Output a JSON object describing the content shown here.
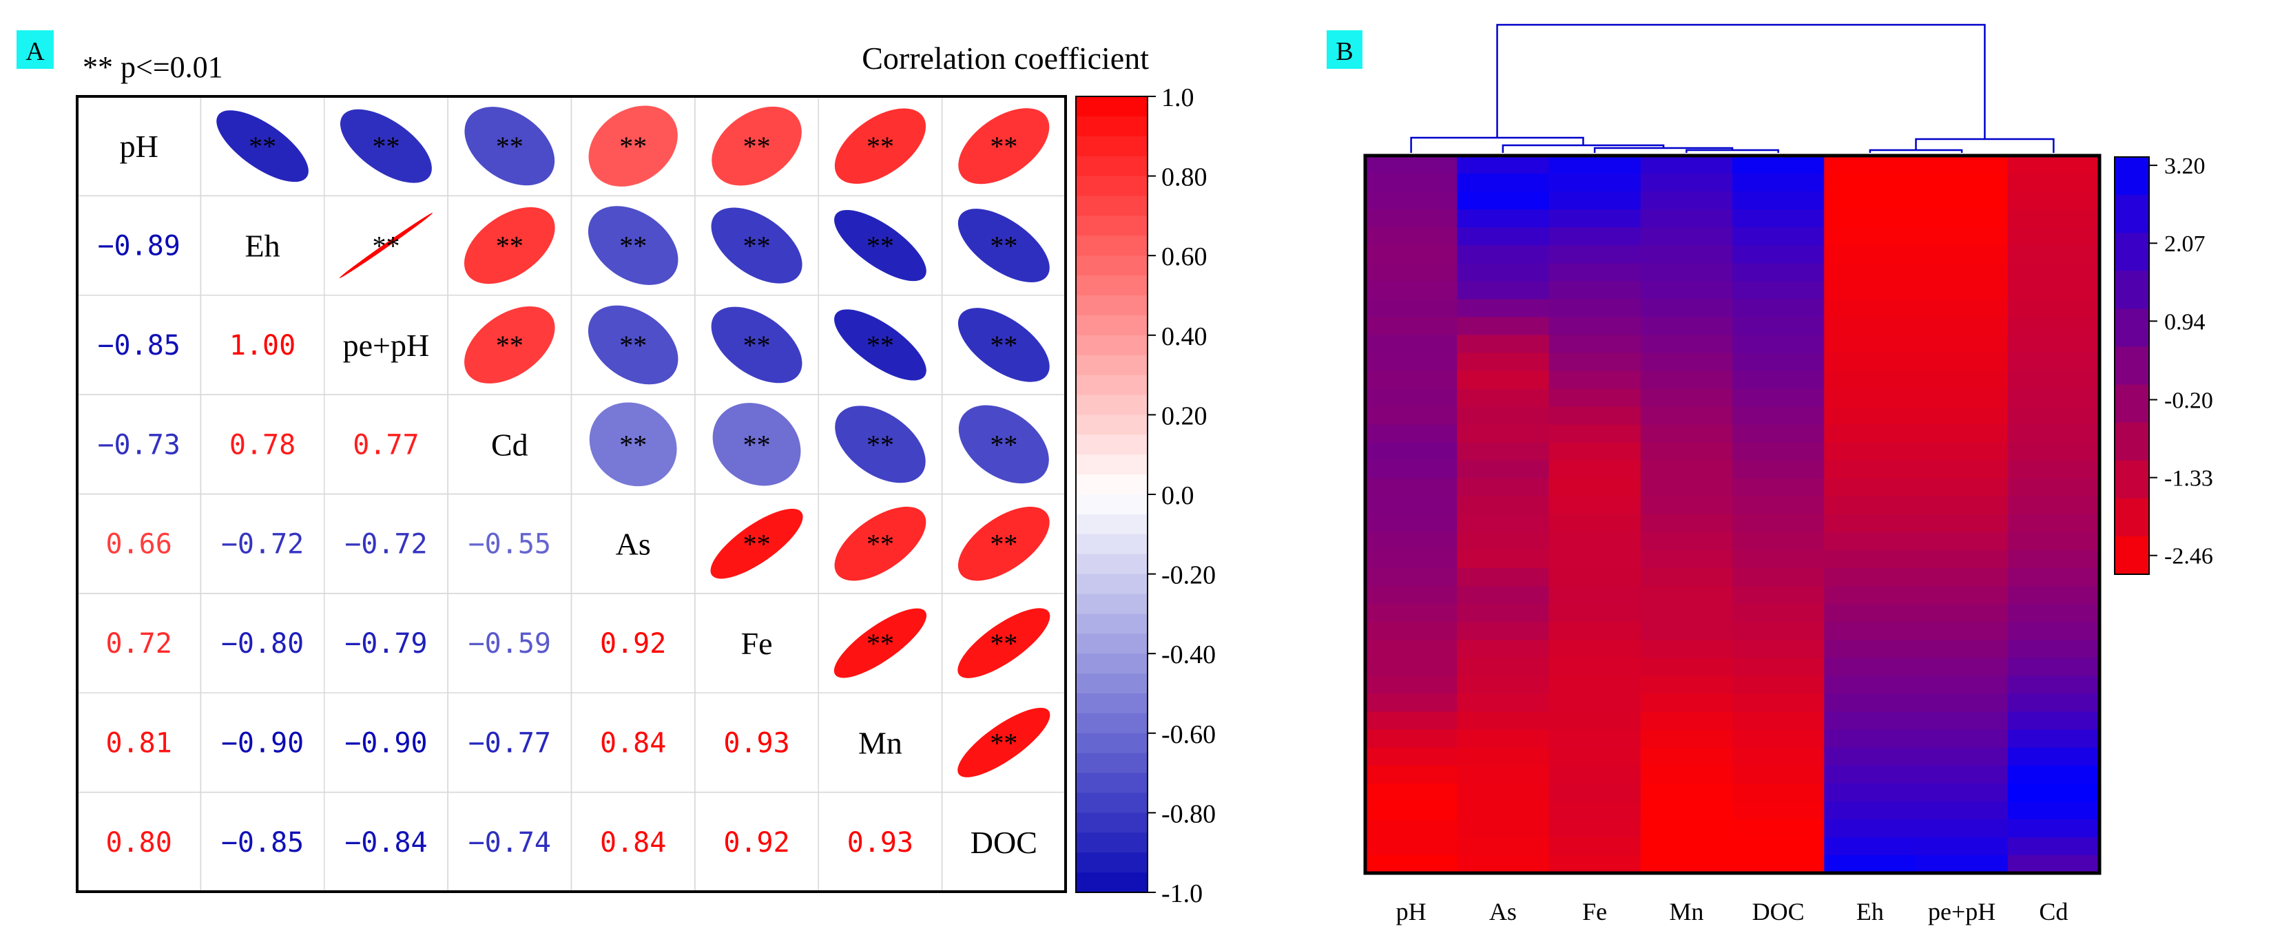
{
  "panels": {
    "a": {
      "tag": "A",
      "note": "** p<=0.01",
      "colorbar_title": "Correlation coefficient"
    },
    "b": {
      "tag": "B"
    }
  },
  "colors": {
    "tag_bg": "#19f5f2",
    "positive": "#ff0000",
    "negative": "#0a0ab4",
    "dendrogram": "#0000cc",
    "frame": "#000000"
  },
  "chart_data": [
    {
      "type": "heatmap",
      "kind": "correlation-matrix",
      "variables": [
        "pH",
        "Eh",
        "pe+pH",
        "Cd",
        "As",
        "Fe",
        "Mn",
        "DOC"
      ],
      "matrix": [
        [
          1.0,
          -0.89,
          -0.85,
          -0.73,
          0.66,
          0.72,
          0.81,
          0.8
        ],
        [
          -0.89,
          1.0,
          1.0,
          0.78,
          -0.72,
          -0.8,
          -0.9,
          -0.85
        ],
        [
          -0.85,
          1.0,
          1.0,
          0.77,
          -0.72,
          -0.79,
          -0.9,
          -0.84
        ],
        [
          -0.73,
          0.78,
          0.77,
          1.0,
          -0.55,
          -0.59,
          -0.77,
          -0.74
        ],
        [
          0.66,
          -0.72,
          -0.72,
          -0.55,
          1.0,
          0.92,
          0.84,
          0.84
        ],
        [
          0.72,
          -0.8,
          -0.79,
          -0.59,
          0.92,
          1.0,
          0.93,
          0.92
        ],
        [
          0.81,
          -0.9,
          -0.9,
          -0.77,
          0.84,
          0.93,
          1.0,
          0.93
        ],
        [
          0.8,
          -0.85,
          -0.84,
          -0.74,
          0.84,
          0.92,
          0.93,
          1.0
        ]
      ],
      "lower_labels": [
        [
          "",
          "",
          "",
          "",
          "",
          "",
          "",
          ""
        ],
        [
          "−0.89",
          "",
          "",
          "",
          "",
          "",
          "",
          ""
        ],
        [
          "−0.85",
          "1.00",
          "",
          "",
          "",
          "",
          "",
          ""
        ],
        [
          "−0.73",
          "0.78",
          "0.77",
          "",
          "",
          "",
          "",
          ""
        ],
        [
          "0.66",
          "−0.72",
          "−0.72",
          "−0.55",
          "",
          "",
          "",
          ""
        ],
        [
          "0.72",
          "−0.80",
          "−0.79",
          "−0.59",
          "0.92",
          "",
          "",
          ""
        ],
        [
          "0.81",
          "−0.90",
          "−0.90",
          "−0.77",
          "0.84",
          "0.93",
          "",
          ""
        ],
        [
          "0.80",
          "−0.85",
          "−0.84",
          "−0.74",
          "0.84",
          "0.92",
          "0.93",
          ""
        ]
      ],
      "upper_marker": "**",
      "colorbar": {
        "title": "Correlation coefficient",
        "range": [
          -1.0,
          1.0
        ],
        "ticks": [
          "1.0",
          "0.80",
          "0.60",
          "0.40",
          "0.20",
          "0.0",
          "-0.20",
          "-0.40",
          "-0.60",
          "-0.80",
          "-1.0"
        ]
      }
    },
    {
      "type": "heatmap",
      "kind": "clustered-heatmap",
      "columns": [
        "pH",
        "As",
        "Fe",
        "Mn",
        "DOC",
        "Eh",
        "pe+pH",
        "Cd"
      ],
      "rows_count": 40,
      "column_profiles": [
        [
          0.6,
          0.5,
          0.4,
          0.2,
          0.1,
          0.2,
          0.3,
          0.2,
          0.4,
          0.2,
          0.3,
          0.2,
          0.6,
          0.5,
          0.3,
          0.4,
          0.2,
          0.1,
          0.0,
          -0.2,
          -0.4,
          -0.5,
          -0.5,
          -0.8,
          -1.4,
          -1.8,
          -2.1,
          -2.4,
          -2.4,
          -2.2,
          -2.5
        ],
        [
          2.5,
          3.2,
          2.2,
          1.5,
          1.3,
          0.3,
          -0.8,
          -1.3,
          -0.9,
          -1.0,
          -0.6,
          -0.9,
          -1.0,
          -1.1,
          -0.5,
          -0.7,
          -1.2,
          -1.3,
          -1.5,
          -1.9,
          -2.0,
          -2.1,
          -2.1,
          -2.2
        ],
        [
          2.9,
          2.6,
          1.6,
          1.0,
          0.6,
          0.2,
          -0.3,
          -0.9,
          -1.4,
          -1.5,
          -1.3,
          -1.3,
          -1.2,
          -1.5,
          -1.6,
          -1.6,
          -1.7,
          -1.6,
          -1.7,
          -1.9
        ],
        [
          2.2,
          1.8,
          1.5,
          1.2,
          1.0,
          0.6,
          0.3,
          0.0,
          -0.3,
          -0.5,
          -0.5,
          -0.8,
          -1.0,
          -1.2,
          -1.2,
          -1.5,
          -1.8,
          -2.1,
          -2.3,
          -2.4,
          -2.5,
          -2.6
        ],
        [
          3.0,
          2.6,
          2.0,
          1.5,
          1.1,
          0.9,
          0.6,
          0.3,
          0.0,
          -0.3,
          -0.5,
          -0.7,
          -1.0,
          -1.2,
          -1.5,
          -1.8,
          -2.0,
          -2.2,
          -2.4,
          -2.6
        ],
        [
          -2.4,
          -2.5,
          -2.4,
          -2.3,
          -2.2,
          -2.1,
          -2.0,
          -1.9,
          -1.8,
          -1.6,
          -1.4,
          -1.2,
          -1.0,
          -0.6,
          -0.3,
          0.0,
          0.3,
          0.6,
          0.9,
          1.2,
          1.6,
          2.0,
          2.4,
          3.0
        ],
        [
          -2.4,
          -2.5,
          -2.4,
          -2.3,
          -2.2,
          -2.1,
          -2.0,
          -1.9,
          -1.8,
          -1.6,
          -1.4,
          -1.2,
          -1.0,
          -0.6,
          -0.3,
          0.0,
          0.3,
          0.6,
          0.9,
          1.2,
          1.6,
          2.0,
          2.4,
          2.9
        ],
        [
          -1.7,
          -1.6,
          -1.5,
          -1.4,
          -1.4,
          -1.3,
          -1.2,
          -1.1,
          -1.0,
          -0.9,
          -0.7,
          -0.5,
          -0.3,
          0.0,
          0.3,
          0.6,
          1.0,
          1.5,
          2.2,
          3.0,
          3.2,
          2.4,
          1.5
        ]
      ],
      "colorbar": {
        "ticks": [
          "3.20",
          "2.07",
          "0.94",
          "-0.20",
          "-1.33",
          "-2.46"
        ],
        "range": [
          -2.46,
          3.2
        ]
      }
    }
  ]
}
